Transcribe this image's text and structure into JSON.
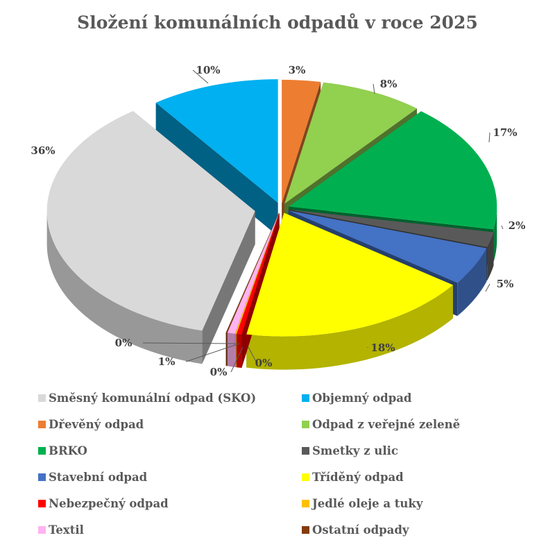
{
  "chart_data": {
    "type": "pie",
    "variant": "3d-exploded",
    "title": "Složení komunálních odpadů v roce 2025",
    "legend_position": "bottom",
    "slices": [
      {
        "label": "Směsný komunální odpad (SKO)",
        "value": 36,
        "data_label": "36%",
        "color": "#d9d9d9"
      },
      {
        "label": "Objemný odpad",
        "value": 10,
        "data_label": "10%",
        "color": "#00b0f0"
      },
      {
        "label": "Dřevěný odpad",
        "value": 3,
        "data_label": "3%",
        "color": "#ed7d31"
      },
      {
        "label": "Odpad z veřejné zeleně",
        "value": 8,
        "data_label": "8%",
        "color": "#92d050"
      },
      {
        "label": "BRKO",
        "value": 17,
        "data_label": "17%",
        "color": "#00b050"
      },
      {
        "label": "Smetky z ulic",
        "value": 2,
        "data_label": "2%",
        "color": "#595959"
      },
      {
        "label": "Stavební odpad",
        "value": 5,
        "data_label": "5%",
        "color": "#4472c4"
      },
      {
        "label": "Tříděný odpad",
        "value": 18,
        "data_label": "18%",
        "color": "#ffff00"
      },
      {
        "label": "Nebezpečný odpad",
        "value": 0.4,
        "data_label": "0%",
        "color": "#ff0000"
      },
      {
        "label": "Jedlé oleje a tuky",
        "value": 0.1,
        "data_label": "0%",
        "color": "#ffc000"
      },
      {
        "label": "Textil",
        "value": 0.6,
        "data_label": "1%",
        "color": "#ffb3f0"
      },
      {
        "label": "Ostatní odpady",
        "value": 0.1,
        "data_label": "0%",
        "color": "#843c0c"
      }
    ]
  }
}
